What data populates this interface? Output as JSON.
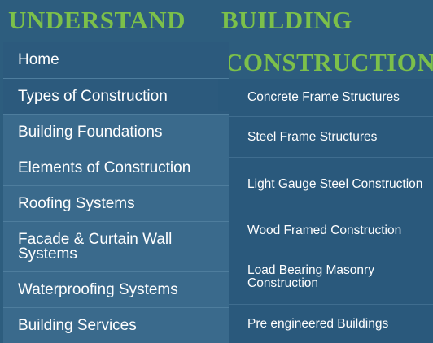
{
  "site_title": {
    "word1": "UNDERSTAND",
    "word2": "BUILDING",
    "word3": "CONSTRUCTION"
  },
  "menu": {
    "items": [
      {
        "label": "Home"
      },
      {
        "label": "Types of Construction"
      },
      {
        "label": "Building Foundations"
      },
      {
        "label": "Elements of Construction"
      },
      {
        "label": "Roofing Systems"
      },
      {
        "label": "Facade & Curtain Wall Systems"
      },
      {
        "label": "Waterproofing Systems"
      },
      {
        "label": "Building Services"
      }
    ]
  },
  "submenu": {
    "items": [
      {
        "label": "Concrete Frame Structures"
      },
      {
        "label": "Steel Frame Structures"
      },
      {
        "label": "Light Gauge Steel Construction"
      },
      {
        "label": "Wood Framed Construction"
      },
      {
        "label": "Load Bearing Masonry Construction"
      },
      {
        "label": "Pre engineered Buildings"
      }
    ]
  },
  "colors": {
    "title": "#7cc04a",
    "background": "#2d5d7e",
    "menu_bg": "#3a6a8c",
    "active_bg": "#2c5a7d",
    "submenu_bg": "#2a597c",
    "text": "#ffffff"
  }
}
